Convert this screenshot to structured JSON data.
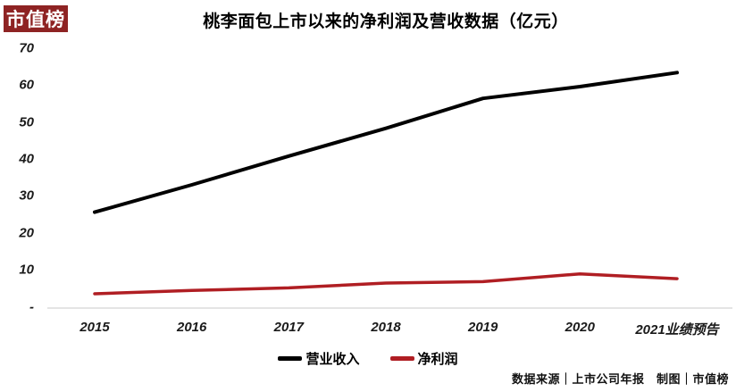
{
  "logo": {
    "text": "市值榜",
    "bg_color": "#8e2323",
    "text_color": "#ffffff"
  },
  "footer": {
    "text": "数据来源｜上市公司年报　制图｜市值榜"
  },
  "chart_data": {
    "type": "line",
    "title": "桃李面包上市以来的净利润及营收数据（亿元）",
    "categories": [
      "2015",
      "2016",
      "2017",
      "2018",
      "2019",
      "2020",
      "2021业绩预告"
    ],
    "series": [
      {
        "id": "revenue",
        "name": "营业收入",
        "color": "#000000",
        "stroke_width": 4,
        "values": [
          25.6,
          33.0,
          40.8,
          48.3,
          56.4,
          59.6,
          63.4
        ]
      },
      {
        "id": "net-profit",
        "name": "净利润",
        "color": "#b01e23",
        "stroke_width": 3.5,
        "values": [
          3.5,
          4.4,
          5.1,
          6.4,
          6.8,
          8.9,
          7.6
        ]
      }
    ],
    "ylim": [
      0,
      70
    ],
    "y_ticks": [
      {
        "value": 70,
        "label": "70"
      },
      {
        "value": 60,
        "label": "60"
      },
      {
        "value": 50,
        "label": "50"
      },
      {
        "value": 40,
        "label": "40"
      },
      {
        "value": 30,
        "label": "30"
      },
      {
        "value": 20,
        "label": "20"
      },
      {
        "value": 10,
        "label": "10"
      },
      {
        "value": 0,
        "label": "-"
      }
    ],
    "grid": false,
    "axis_line_color": "#dbdbdb",
    "legend_position": "bottom"
  }
}
